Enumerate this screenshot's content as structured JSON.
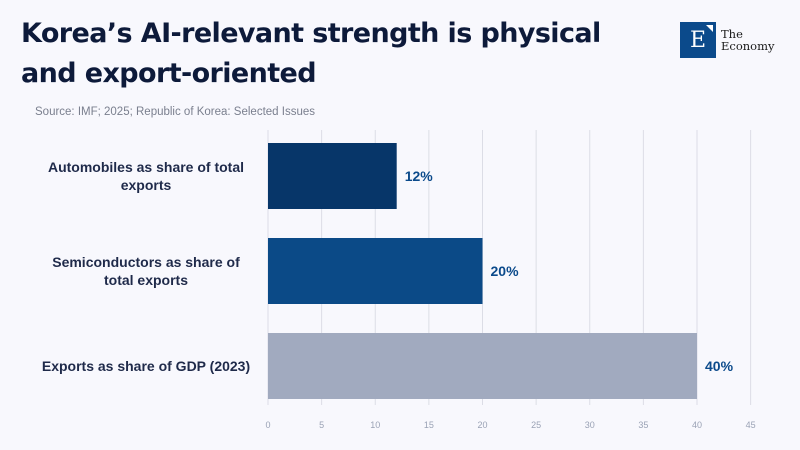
{
  "header": {
    "title": "Korea’s AI-relevant strength is physical and export-oriented",
    "source": "Source: IMF; 2025; Republic of Korea: Selected Issues"
  },
  "logo": {
    "mark": "E",
    "line1": "The",
    "line2": "Economy",
    "icon": "the-economy-logo-icon"
  },
  "colors": {
    "bar_automobiles": "#073669",
    "bar_semiconductors": "#0b4a87",
    "bar_exports": "#a1aabf",
    "value_label": "#0b4a8b",
    "gridline": "#dcdde6"
  },
  "chart_data": {
    "type": "bar",
    "orientation": "horizontal",
    "title": "Korea’s AI-relevant strength is physical and export-oriented",
    "xlabel": "",
    "ylabel": "",
    "categories": [
      [
        "Automobiles as share of total",
        "exports"
      ],
      [
        "Semiconductors as share of",
        "total exports"
      ],
      [
        "Exports as share of GDP (2023)"
      ]
    ],
    "values": [
      12,
      20,
      40
    ],
    "value_labels": [
      "12%",
      "20%",
      "40%"
    ],
    "xlim": [
      0,
      45
    ],
    "xticks": [
      0,
      5,
      10,
      15,
      20,
      25,
      30,
      35,
      40,
      45
    ],
    "grid": true,
    "legend": "none"
  }
}
